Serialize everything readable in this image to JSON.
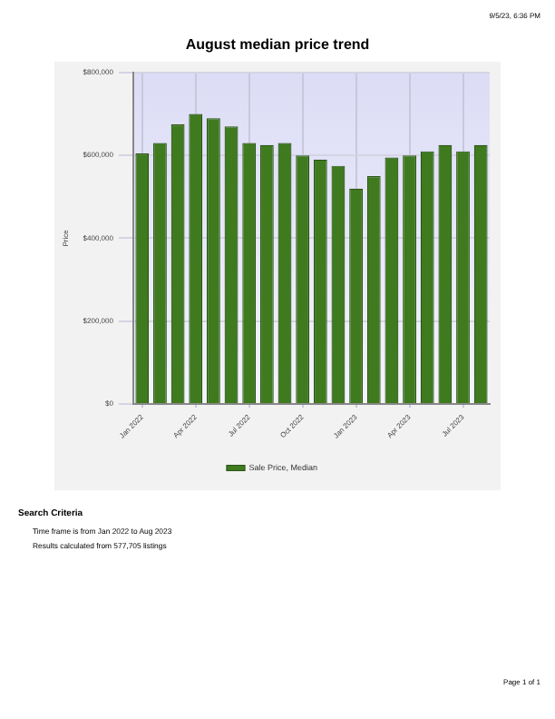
{
  "chart_data": {
    "type": "bar",
    "title": "August median price trend",
    "ylabel": "Price",
    "categories": [
      "Jan 2022",
      null,
      null,
      "Apr 2022",
      null,
      null,
      "Jul 2022",
      null,
      null,
      "Oct 2022",
      null,
      null,
      "Jan 2023",
      null,
      null,
      "Apr 2023",
      null,
      null,
      "Jul 2023",
      null
    ],
    "series": [
      {
        "name": "Sale Price, Median",
        "color": "#3f7a1f",
        "values": [
          605000,
          630000,
          675000,
          700000,
          690000,
          670000,
          630000,
          625000,
          630000,
          600000,
          590000,
          575000,
          520000,
          550000,
          595000,
          600000,
          610000,
          625000,
          610000,
          625000
        ]
      }
    ],
    "ylim": [
      0,
      800000
    ],
    "yticks": [
      {
        "value": 0,
        "label": "$0"
      },
      {
        "value": 200000,
        "label": "$200,000"
      },
      {
        "value": 400000,
        "label": "$400,000"
      },
      {
        "value": 600000,
        "label": "$600,000"
      },
      {
        "value": 800000,
        "label": "$800,000"
      }
    ],
    "grid": true,
    "legend": "bottom",
    "annotations": [
      "9/5/23, 6:36 PM",
      "Search Criteria",
      "Time frame is from Jan 2022 to Aug 2023",
      "Results calculated from 577,705 listings",
      "Page 1 of 1"
    ]
  }
}
